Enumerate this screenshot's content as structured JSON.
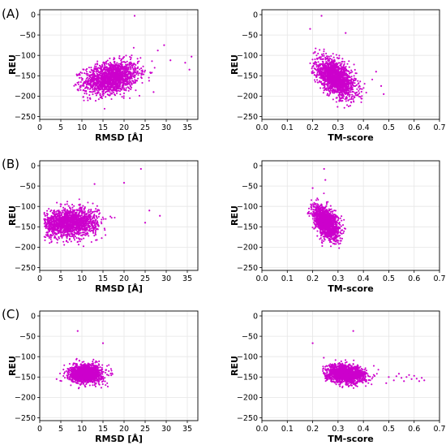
{
  "figure": {
    "panel_labels": [
      "(A)",
      "(B)",
      "(C)"
    ],
    "point_color": "#cc00cc"
  },
  "chart_data": [
    {
      "id": "A-rmsd",
      "type": "scatter",
      "row_label": "(A)",
      "xlabel": "RMSD [Å]",
      "ylabel": "REU",
      "xlim": [
        0,
        37.5
      ],
      "ylim": [
        -257,
        12
      ],
      "xticks": [
        0,
        5,
        10,
        15,
        20,
        25,
        30,
        35
      ],
      "yticks": [
        0,
        -50,
        -100,
        -150,
        -200,
        -250
      ],
      "grid": true,
      "cloud": {
        "x_center": 17,
        "x_spread": 3.2,
        "y_center": -155,
        "y_spread": 19,
        "x_min": 8,
        "x_max": 29,
        "y_min": -235,
        "y_max": -60,
        "slope": 1.6,
        "n": 1600
      },
      "outliers": [
        {
          "x": 22.5,
          "y": -3
        },
        {
          "x": 36,
          "y": -103
        },
        {
          "x": 34.5,
          "y": -118
        },
        {
          "x": 35.5,
          "y": -135
        },
        {
          "x": 29.5,
          "y": -75
        },
        {
          "x": 31,
          "y": -112
        },
        {
          "x": 28,
          "y": -88
        },
        {
          "x": 27,
          "y": -190
        }
      ]
    },
    {
      "id": "A-tm",
      "type": "scatter",
      "xlabel": "TM-score",
      "ylabel": "REU",
      "xlim": [
        0,
        0.7
      ],
      "ylim": [
        -257,
        12
      ],
      "xticks": [
        0.0,
        0.1,
        0.2,
        0.3,
        0.4,
        0.5,
        0.6,
        0.7
      ],
      "yticks": [
        0,
        -50,
        -100,
        -150,
        -200,
        -250
      ],
      "grid": true,
      "cloud": {
        "x_center": 0.29,
        "x_spread": 0.04,
        "y_center": -155,
        "y_spread": 20,
        "x_min": 0.19,
        "x_max": 0.5,
        "y_min": -230,
        "y_max": -70,
        "slope": -330,
        "n": 1600
      },
      "outliers": [
        {
          "x": 0.235,
          "y": -3
        },
        {
          "x": 0.19,
          "y": -35
        },
        {
          "x": 0.33,
          "y": -45
        },
        {
          "x": 0.45,
          "y": -140
        },
        {
          "x": 0.48,
          "y": -195
        },
        {
          "x": 0.47,
          "y": -175
        }
      ]
    },
    {
      "id": "B-rmsd",
      "type": "scatter",
      "row_label": "(B)",
      "xlabel": "RMSD [Å]",
      "ylabel": "REU",
      "xlim": [
        0,
        37.5
      ],
      "ylim": [
        -257,
        12
      ],
      "xticks": [
        0,
        5,
        10,
        15,
        20,
        25,
        30,
        35
      ],
      "yticks": [
        0,
        -50,
        -100,
        -150,
        -200,
        -250
      ],
      "grid": true,
      "cloud": {
        "x_center": 7,
        "x_spread": 3.3,
        "y_center": -140,
        "y_spread": 17,
        "x_min": 1,
        "x_max": 23,
        "y_min": -205,
        "y_max": -75,
        "slope": 0.6,
        "n": 1600
      },
      "outliers": [
        {
          "x": 24,
          "y": -8
        },
        {
          "x": 20,
          "y": -42
        },
        {
          "x": 28.5,
          "y": -123
        },
        {
          "x": 26,
          "y": -110
        },
        {
          "x": 25,
          "y": -140
        },
        {
          "x": 13,
          "y": -45
        }
      ]
    },
    {
      "id": "B-tm",
      "type": "scatter",
      "xlabel": "TM-score",
      "ylabel": "REU",
      "xlim": [
        0,
        0.7
      ],
      "ylim": [
        -257,
        12
      ],
      "xticks": [
        0.0,
        0.1,
        0.2,
        0.3,
        0.4,
        0.5,
        0.6,
        0.7
      ],
      "yticks": [
        0,
        -50,
        -100,
        -150,
        -200,
        -250
      ],
      "grid": true,
      "cloud": {
        "x_center": 0.255,
        "x_spread": 0.025,
        "y_center": -140,
        "y_spread": 18,
        "x_min": 0.18,
        "x_max": 0.33,
        "y_min": -205,
        "y_max": -60,
        "slope": -380,
        "n": 1400
      },
      "outliers": [
        {
          "x": 0.245,
          "y": -8
        },
        {
          "x": 0.25,
          "y": -35
        },
        {
          "x": 0.2,
          "y": -55
        }
      ]
    },
    {
      "id": "C-rmsd",
      "type": "scatter",
      "row_label": "(C)",
      "xlabel": "RMSD [Å]",
      "ylabel": "REU",
      "xlim": [
        0,
        37.5
      ],
      "ylim": [
        -257,
        12
      ],
      "xticks": [
        0,
        5,
        10,
        15,
        20,
        25,
        30,
        35
      ],
      "yticks": [
        0,
        -50,
        -100,
        -150,
        -200,
        -250
      ],
      "grid": true,
      "cloud": {
        "x_center": 11,
        "x_spread": 1.9,
        "y_center": -142,
        "y_spread": 11,
        "x_min": 4,
        "x_max": 18,
        "y_min": -180,
        "y_max": -100,
        "slope": 0,
        "n": 1400
      },
      "outliers": [
        {
          "x": 9,
          "y": -37
        },
        {
          "x": 15,
          "y": -67
        },
        {
          "x": 4,
          "y": -155
        }
      ]
    },
    {
      "id": "C-tm",
      "type": "scatter",
      "xlabel": "TM-score",
      "ylabel": "REU",
      "xlim": [
        0,
        0.7
      ],
      "ylim": [
        -257,
        12
      ],
      "xticks": [
        0.0,
        0.1,
        0.2,
        0.3,
        0.4,
        0.5,
        0.6,
        0.7
      ],
      "yticks": [
        0,
        -50,
        -100,
        -150,
        -200,
        -250
      ],
      "grid": true,
      "cloud": {
        "x_center": 0.33,
        "x_spread": 0.04,
        "y_center": -143,
        "y_spread": 11,
        "x_min": 0.24,
        "x_max": 0.52,
        "y_min": -180,
        "y_max": -100,
        "slope": -60,
        "n": 1400
      },
      "tail": [
        {
          "x": 0.5,
          "y": -150
        },
        {
          "x": 0.53,
          "y": -148
        },
        {
          "x": 0.55,
          "y": -152
        },
        {
          "x": 0.57,
          "y": -150
        },
        {
          "x": 0.59,
          "y": -155
        },
        {
          "x": 0.61,
          "y": -154
        },
        {
          "x": 0.63,
          "y": -152
        },
        {
          "x": 0.64,
          "y": -158
        },
        {
          "x": 0.62,
          "y": -160
        },
        {
          "x": 0.6,
          "y": -147
        },
        {
          "x": 0.56,
          "y": -160
        },
        {
          "x": 0.52,
          "y": -158
        },
        {
          "x": 0.54,
          "y": -142
        },
        {
          "x": 0.58,
          "y": -145
        },
        {
          "x": 0.49,
          "y": -165
        }
      ],
      "outliers": [
        {
          "x": 0.2,
          "y": -67
        },
        {
          "x": 0.36,
          "y": -37
        }
      ]
    }
  ]
}
